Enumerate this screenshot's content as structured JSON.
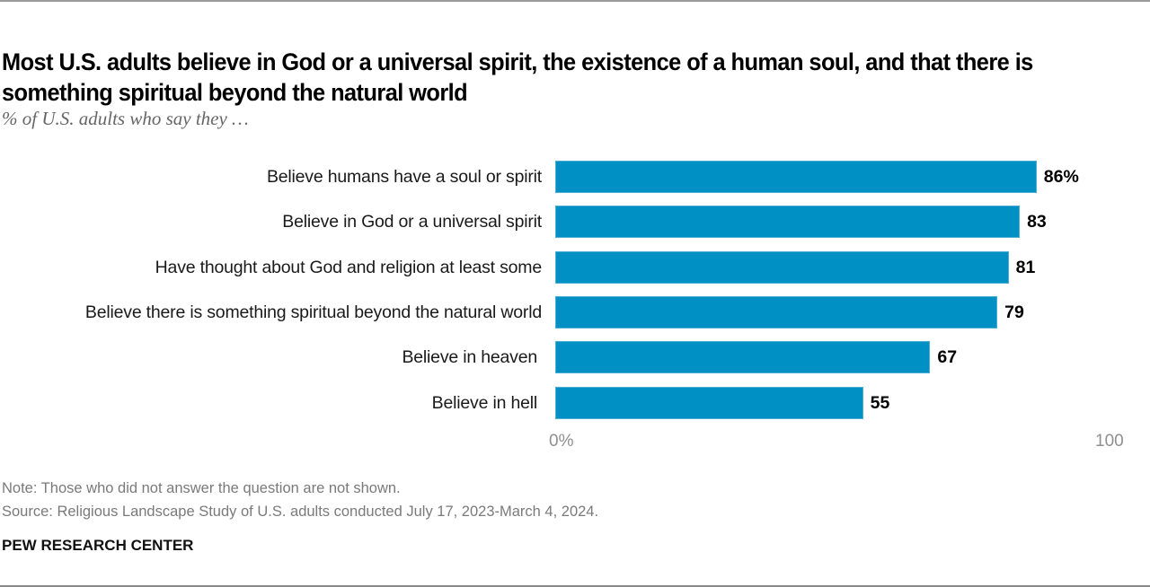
{
  "header": {
    "title": "Most U.S. adults believe in God or a universal spirit, the existence of a human soul, and that there is something spiritual beyond the natural world",
    "subtitle": "% of U.S. adults who say they …"
  },
  "chart_data": {
    "type": "bar",
    "orientation": "horizontal",
    "title": "Most U.S. adults believe in God or a universal spirit, the existence of a human soul, and that there is something spiritual beyond the natural world",
    "subtitle": "% of U.S. adults who say they …",
    "categories": [
      "Believe humans have a soul or spirit",
      "Believe in God or a universal spirit",
      "Have thought about God and religion at least some",
      "Believe there is something spiritual beyond the natural world",
      "Believe in heaven",
      "Believe in hell"
    ],
    "values": [
      86,
      83,
      81,
      79,
      67,
      55
    ],
    "value_labels": [
      "86%",
      "83",
      "81",
      "79",
      "67",
      "55"
    ],
    "xlabel": "",
    "ylabel": "",
    "xlim": [
      0,
      100
    ],
    "x_ticks": [
      "0%",
      "100"
    ],
    "grid": false,
    "legend": null,
    "bar_color": "#0190c3"
  },
  "axis": {
    "tick_min": "0%",
    "tick_max": "100"
  },
  "footer": {
    "note": "Note: Those who did not answer the question are not shown.",
    "source": "Source: Religious Landscape Study of U.S. adults conducted July 17, 2023-March 4, 2024.",
    "brand": "PEW RESEARCH CENTER"
  },
  "colors": {
    "bar": "#0190c3",
    "axis_text": "#8f8f8f",
    "note_text": "#7a7a7a"
  }
}
